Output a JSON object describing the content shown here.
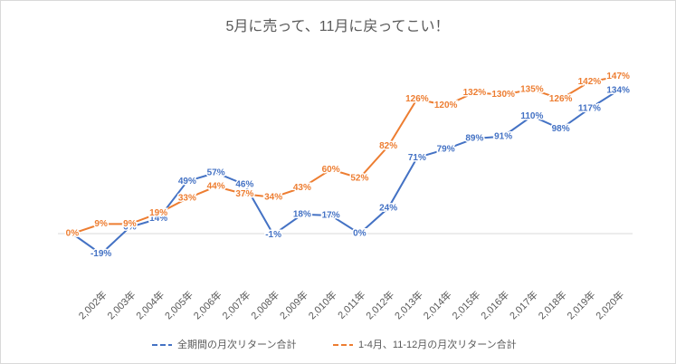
{
  "chart_data": {
    "type": "line",
    "title": "5月に売って、11月に戻ってこい！",
    "categories": [
      null,
      "2,002年",
      "2,003年",
      "2,004年",
      "2,005年",
      "2,006年",
      "2,007年",
      "2,008年",
      "2,009年",
      "2,010年",
      "2,011年",
      "2,012年",
      "2,013年",
      "2,014年",
      "2,015年",
      "2,016年",
      "2,017年",
      "2,018年",
      "2,019年",
      "2,020年"
    ],
    "series": [
      {
        "name": "全期間の月次リターン合計",
        "color": "#4472c4",
        "values": [
          0,
          -19,
          6,
          14,
          49,
          57,
          46,
          -1,
          18,
          17,
          0,
          24,
          71,
          79,
          89,
          91,
          110,
          98,
          117,
          134
        ],
        "value_labels": [
          null,
          "-19%",
          "6%",
          "14%",
          "49%",
          "57%",
          "46%",
          "-1%",
          "18%",
          "17%",
          "0%",
          "24%",
          "71%",
          "79%",
          "89%",
          "91%",
          "110%",
          "98%",
          "117%",
          "134%"
        ]
      },
      {
        "name": "1-4月、11-12月の月次リターン合計",
        "color": "#ed7d31",
        "values": [
          0,
          9,
          9,
          19,
          33,
          44,
          37,
          34,
          43,
          60,
          52,
          82,
          126,
          120,
          132,
          130,
          135,
          126,
          142,
          147
        ],
        "value_labels": [
          "0%",
          "9%",
          "9%",
          "19%",
          "33%",
          "44%",
          "37%",
          "34%",
          "43%",
          "60%",
          "52%",
          "82%",
          "126%",
          "120%",
          "132%",
          "130%",
          "135%",
          "126%",
          "142%",
          "147%"
        ]
      }
    ],
    "ylim": [
      -50,
      150
    ],
    "legend": "bottom"
  }
}
